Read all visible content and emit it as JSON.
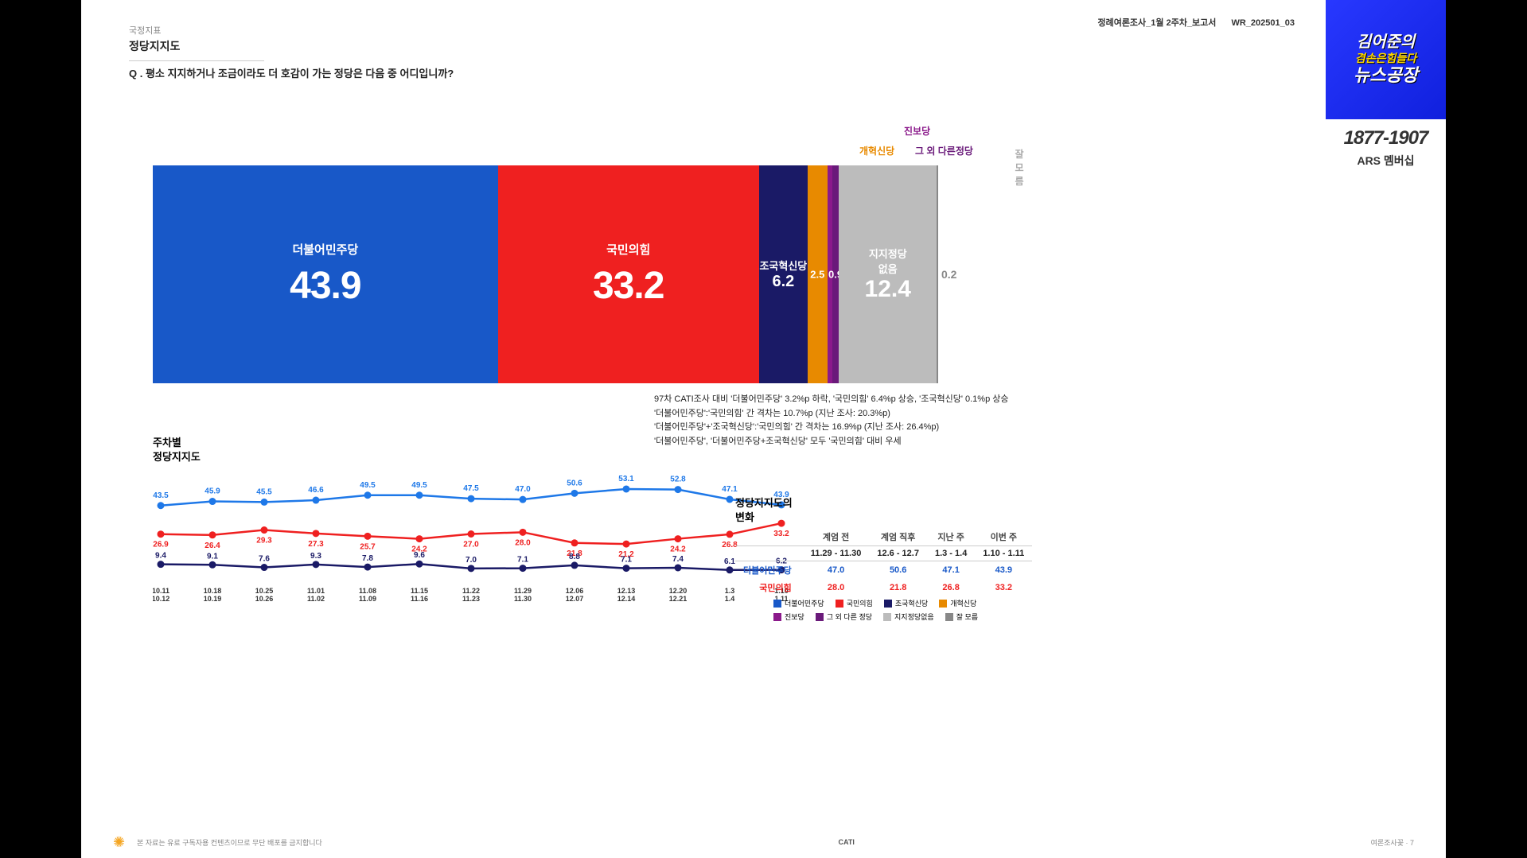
{
  "meta": {
    "report_label": "정례여론조사_1월 2주차_보고서",
    "report_code": "WR_202501_03",
    "logo_line1": "김어준의",
    "logo_line2": "겸손은힘들다",
    "logo_line3": "뉴스공장",
    "years": "1877-1907",
    "ars": "ARS 멤버십"
  },
  "header": {
    "tag": "국정지표",
    "title": "정당지지도",
    "question": "Q . 평소 지지하거나 조금이라도 더 호감이 가는 정당은 다음 중 어디입니까?"
  },
  "top_labels": {
    "jinbo": {
      "text": "진보당",
      "color": "#8b1a8b",
      "x": 944
    },
    "gaehyuk": {
      "text": "개혁신당",
      "color": "#e88a00",
      "x": 888
    },
    "etc": {
      "text": "그 외 다른정당",
      "color": "#6a1a7a",
      "x": 958
    },
    "dontknow": {
      "text": "잘 모름",
      "color": "#aaa",
      "x": 1078
    }
  },
  "stacked": {
    "segments": [
      {
        "label": "더불어민주당",
        "value": "43.9",
        "pct": 43.9,
        "color": "#1858c8",
        "big": true
      },
      {
        "label": "국민의힘",
        "value": "33.2",
        "pct": 33.2,
        "color": "#ef2020",
        "big": true
      },
      {
        "label": "조국혁신당",
        "value": "6.2",
        "pct": 6.2,
        "color": "#1a1a66",
        "big": false
      },
      {
        "label": "",
        "value": "2.5",
        "pct": 2.5,
        "color": "#e88a00",
        "big": false,
        "tiny": true
      },
      {
        "label": "",
        "value": "0.6",
        "pct": 0.6,
        "color": "#8b1a8b",
        "big": false,
        "tiny": true,
        "val_above": true
      },
      {
        "label": "",
        "value": "0.9",
        "pct": 0.9,
        "color": "#6a1a7a",
        "big": false,
        "tiny": true
      },
      {
        "label": "지지정당\n없음",
        "value": "12.4",
        "pct": 12.4,
        "color": "#bcbcbc",
        "big": false,
        "gray": true
      },
      {
        "label": "",
        "value": "0.2",
        "pct": 0.2,
        "color": "#888",
        "big": false,
        "tiny": true,
        "outside": true
      }
    ]
  },
  "notes": [
    "97차 CATI조사 대비 '더불어민주당' 3.2%p 하락, '국민의힘' 6.4%p 상승, '조국혁신당' 0.1%p 상승",
    "'더불어민주당':'국민의힘' 간 격차는 10.7%p (지난 조사: 20.3%p)",
    "'더불어민주당'+'조국혁신당':'국민의힘' 간 격차는 16.9%p (지난 조사: 26.4%p)",
    "'더불어민주당', '더불어민주당+조국혁신당' 모두 '국민의힘' 대비 우세"
  ],
  "weekly": {
    "title": "주차별\n정당지지도",
    "x_labels": [
      "10.11\n10.12",
      "10.18\n10.19",
      "10.25\n10.26",
      "11.01\n11.02",
      "11.08\n11.09",
      "11.15\n11.16",
      "11.22\n11.23",
      "11.29\n11.30",
      "12.06\n12.07",
      "12.13\n12.14",
      "12.20\n12.21",
      "1.3\n1.4",
      "1.10\n1.11"
    ],
    "series": [
      {
        "name": "더불어민주당",
        "color": "#1e78e8",
        "values": [
          43.5,
          45.9,
          45.5,
          46.6,
          49.5,
          49.5,
          47.5,
          47.0,
          50.6,
          53.1,
          52.8,
          47.1,
          43.9
        ]
      },
      {
        "name": "국민의힘",
        "color": "#ef2020",
        "values": [
          26.9,
          26.4,
          29.3,
          27.3,
          25.7,
          24.2,
          27.0,
          28.0,
          21.8,
          21.2,
          24.2,
          26.8,
          33.2
        ]
      },
      {
        "name": "조국혁신당",
        "color": "#1a1a66",
        "values": [
          9.4,
          9.1,
          7.6,
          9.3,
          7.8,
          9.6,
          7.0,
          7.1,
          8.8,
          7.1,
          7.4,
          6.1,
          6.2
        ]
      }
    ],
    "ymin": 0,
    "ymax": 60
  },
  "change": {
    "title": "정당지지도의\n변화",
    "header1": [
      "계엄 전",
      "계엄 직후",
      "지난 주",
      "이번 주"
    ],
    "header2": [
      "11.29 - 11.30",
      "12.6 - 12.7",
      "1.3 - 1.4",
      "1.10 - 1.11"
    ],
    "rows": [
      {
        "label": "더불어민주당",
        "color": "#1858c8",
        "vals": [
          "47.0",
          "50.6",
          "47.1",
          "43.9"
        ]
      },
      {
        "label": "국민의힘",
        "color": "#ef2020",
        "vals": [
          "28.0",
          "21.8",
          "26.8",
          "33.2"
        ]
      }
    ]
  },
  "legend": [
    [
      {
        "label": "더불어민주당",
        "color": "#1858c8"
      },
      {
        "label": "국민의힘",
        "color": "#ef2020"
      },
      {
        "label": "조국혁신당",
        "color": "#1a1a66"
      },
      {
        "label": "개혁신당",
        "color": "#e88a00"
      }
    ],
    [
      {
        "label": "진보당",
        "color": "#8b1a8b"
      },
      {
        "label": "그 외 다른 정당",
        "color": "#6a1a7a"
      },
      {
        "label": "지지정당없음",
        "color": "#bcbcbc"
      },
      {
        "label": "잘 모름",
        "color": "#888"
      }
    ]
  ],
  "footer": {
    "left": "본 자료는 유료 구독자용 컨텐츠이므로 무단 배포를 금지합니다",
    "center": "CATI",
    "right": "여론조사꽃  ·  7"
  }
}
